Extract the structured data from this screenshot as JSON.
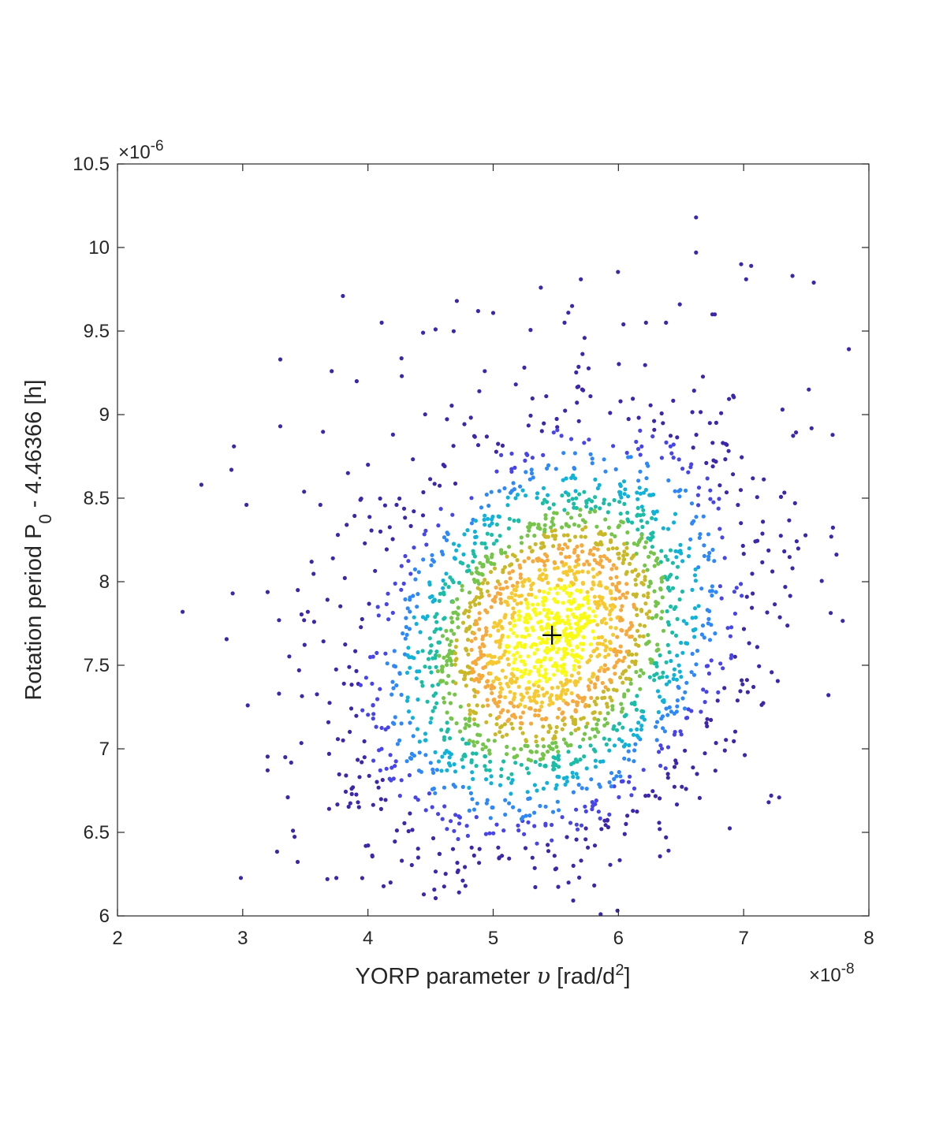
{
  "chart_data": {
    "type": "scatter",
    "title": "",
    "xlabel": "YORP parameter υ [rad/d²]",
    "xlabel_parts": {
      "pre": "YORP parameter ",
      "symbol": "υ",
      "mid": " [rad/d",
      "sup": "2",
      "post": "]"
    },
    "ylabel": "Rotation period P₀ - 4.46366 [h]",
    "ylabel_parts": {
      "pre": "Rotation period P",
      "sub": "0",
      "post": " - 4.46366 [h]"
    },
    "x_exponent": {
      "base": "×10",
      "power": "-8"
    },
    "y_exponent": {
      "base": "×10",
      "power": "-6"
    },
    "xlim": [
      2,
      8
    ],
    "ylim": [
      6,
      10.5
    ],
    "xticks": [
      "2",
      "3",
      "4",
      "5",
      "6",
      "7",
      "8"
    ],
    "yticks": [
      "6",
      "6.5",
      "7",
      "7.5",
      "8",
      "8.5",
      "9",
      "9.5",
      "10",
      "10.5"
    ],
    "grid": false,
    "colormap": [
      "#3e26a8",
      "#4744e8",
      "#2f88f8",
      "#11b2d8",
      "#1bbda6",
      "#74c54a",
      "#c9b928",
      "#f6a93d",
      "#f7c930",
      "#f9fb15"
    ],
    "marker_color": "#000000",
    "distribution": {
      "description_free": true,
      "mean": [
        5.47,
        7.68
      ],
      "std": [
        0.75,
        0.62
      ],
      "correlation": 0.25,
      "n_points": 2600
    },
    "highlight_point": {
      "x": 5.47,
      "y": 7.68,
      "marker": "+"
    },
    "outliers": [
      [
        2.52,
        7.82
      ],
      [
        2.67,
        8.58
      ],
      [
        2.91,
        8.67
      ],
      [
        2.93,
        8.81
      ],
      [
        2.92,
        7.93
      ],
      [
        3.03,
        8.46
      ],
      [
        3.04,
        7.26
      ],
      [
        3.3,
        9.33
      ],
      [
        3.3,
        8.93
      ],
      [
        3.29,
        7.77
      ],
      [
        3.29,
        7.33
      ],
      [
        3.34,
        6.95
      ],
      [
        3.36,
        6.71
      ],
      [
        3.44,
        7.95
      ],
      [
        3.45,
        7.47
      ],
      [
        3.49,
        7.77
      ],
      [
        3.52,
        7.82
      ],
      [
        3.55,
        8.12
      ],
      [
        3.57,
        7.76
      ],
      [
        3.62,
        8.46
      ],
      [
        3.69,
        6.97
      ],
      [
        3.72,
        8.14
      ],
      [
        3.76,
        8.28
      ],
      [
        3.8,
        9.71
      ],
      [
        3.83,
        8.34
      ],
      [
        3.84,
        8.65
      ],
      [
        3.88,
        6.77
      ],
      [
        3.91,
        9.2
      ],
      [
        3.92,
        6.68
      ],
      [
        3.94,
        8.49
      ],
      [
        3.95,
        6.92
      ],
      [
        4.0,
        8.7
      ],
      [
        4.04,
        7.26
      ],
      [
        4.11,
        9.55
      ],
      [
        4.18,
        6.2
      ],
      [
        4.2,
        8.88
      ],
      [
        4.27,
        6.33
      ],
      [
        4.27,
        9.23
      ],
      [
        4.44,
        9.49
      ],
      [
        4.54,
        9.51
      ],
      [
        4.71,
        9.68
      ],
      [
        4.88,
        9.62
      ],
      [
        5.05,
        6.35
      ],
      [
        5.07,
        6.36
      ],
      [
        5.38,
        9.76
      ],
      [
        5.57,
        9.55
      ],
      [
        5.6,
        9.61
      ],
      [
        5.63,
        9.65
      ],
      [
        5.7,
        9.81
      ],
      [
        5.49,
        6.36
      ],
      [
        5.64,
        6.3
      ],
      [
        5.89,
        6.57
      ],
      [
        6.05,
        6.49
      ],
      [
        6.06,
        6.55
      ],
      [
        6.33,
        6.52
      ],
      [
        6.38,
        6.47
      ],
      [
        6.62,
        10.18
      ],
      [
        6.62,
        9.97
      ],
      [
        6.75,
        9.6
      ],
      [
        6.77,
        9.6
      ],
      [
        6.98,
        9.9
      ],
      [
        7.06,
        9.89
      ],
      [
        7.02,
        9.81
      ],
      [
        7.39,
        9.83
      ],
      [
        7.56,
        9.79
      ],
      [
        7.52,
        9.15
      ],
      [
        7.41,
        8.47
      ],
      [
        7.39,
        8.08
      ],
      [
        7.7,
        8.27
      ],
      [
        7.31,
        9.03
      ],
      [
        7.22,
        6.72
      ],
      [
        7.2,
        6.68
      ],
      [
        6.85,
        6.99
      ],
      [
        6.54,
        6.76
      ],
      [
        4.81,
        6.63
      ],
      [
        4.72,
        6.46
      ],
      [
        4.56,
        6.61
      ],
      [
        5.28,
        6.56
      ],
      [
        6.38,
        9.55
      ],
      [
        6.49,
        9.66
      ],
      [
        6.04,
        9.54
      ],
      [
        6.22,
        9.55
      ]
    ]
  }
}
